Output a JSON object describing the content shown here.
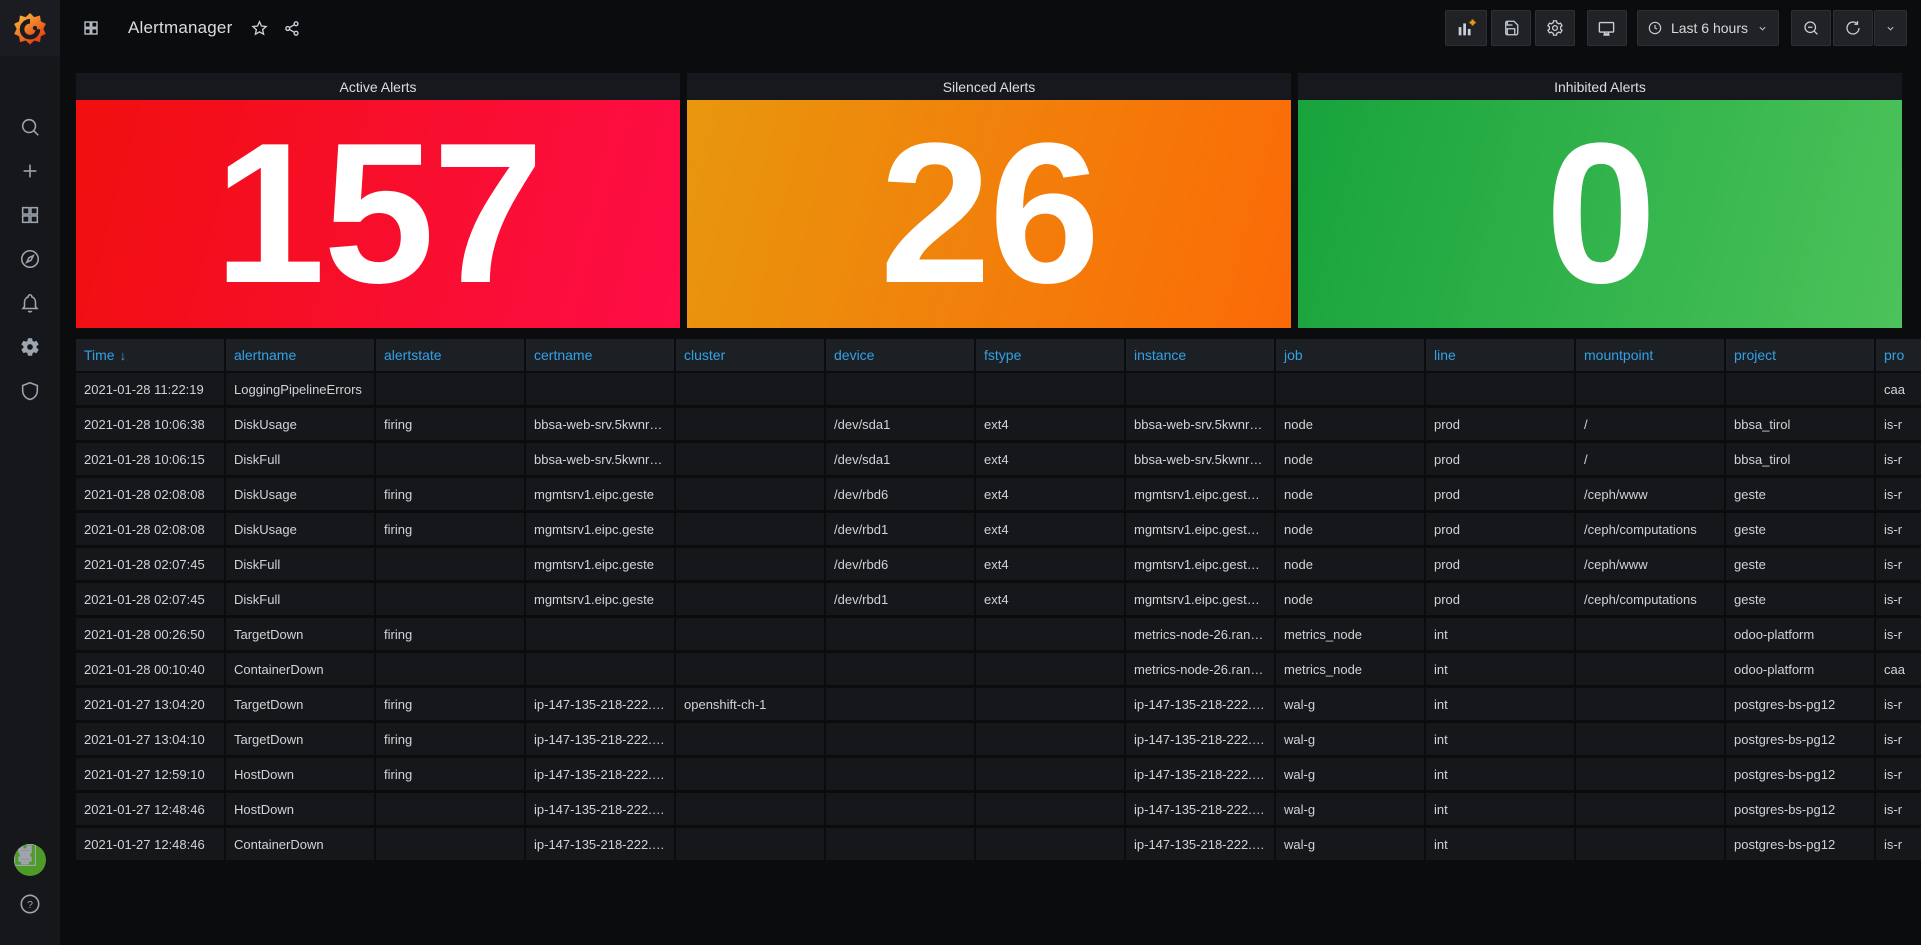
{
  "topbar": {
    "title": "Alertmanager",
    "toolbar": {
      "add_panel": "add panel",
      "save": "save dashboard",
      "settings": "dashboard settings",
      "tv_mode": "cycle view mode",
      "time_range_label": "Last 6 hours",
      "zoom_out": "zoom out time range",
      "refresh": "refresh dashboard"
    }
  },
  "sidebar": {
    "items": [
      "search",
      "create",
      "dashboards",
      "explore",
      "alerting",
      "configuration",
      "server-admin"
    ],
    "bottom": [
      "user-avatar",
      "help"
    ],
    "help_glyph": "?"
  },
  "stat_panels": [
    {
      "title": "Active Alerts",
      "value": "157",
      "gradient_from": "#f10f0f",
      "gradient_to": "#fe0d47",
      "text_color": "#ffffff"
    },
    {
      "title": "Silenced Alerts",
      "value": "26",
      "gradient_from": "#e8970e",
      "gradient_to": "#fb6a07",
      "text_color": "#ffffff"
    },
    {
      "title": "Inhibited Alerts",
      "value": "0",
      "gradient_from": "#18a33c",
      "gradient_to": "#4cc35a",
      "text_color": "#ffffff"
    }
  ],
  "table": {
    "header_color": "#33a2e5",
    "sort": {
      "column": "Time",
      "direction": "desc",
      "arrow": "↓"
    },
    "columns": [
      "Time",
      "alertname",
      "alertstate",
      "certname",
      "cluster",
      "device",
      "fstype",
      "instance",
      "job",
      "line",
      "mountpoint",
      "project",
      "pro"
    ],
    "rows": [
      [
        "2021-01-28 11:22:19",
        "LoggingPipelineErrors",
        "",
        "",
        "",
        "",
        "",
        "",
        "",
        "",
        "",
        "",
        "caa"
      ],
      [
        "2021-01-28 10:06:38",
        "DiskUsage",
        "firing",
        "bbsa-web-srv.5kwnr…",
        "",
        "/dev/sda1",
        "ext4",
        "bbsa-web-srv.5kwnr…",
        "node",
        "prod",
        "/",
        "bbsa_tirol",
        "is-r"
      ],
      [
        "2021-01-28 10:06:15",
        "DiskFull",
        "",
        "bbsa-web-srv.5kwnr…",
        "",
        "/dev/sda1",
        "ext4",
        "bbsa-web-srv.5kwnr…",
        "node",
        "prod",
        "/",
        "bbsa_tirol",
        "is-r"
      ],
      [
        "2021-01-28 02:08:08",
        "DiskUsage",
        "firing",
        "mgmtsrv1.eipc.geste",
        "",
        "/dev/rbd6",
        "ext4",
        "mgmtsrv1.eipc.gest…",
        "node",
        "prod",
        "/ceph/www",
        "geste",
        "is-r"
      ],
      [
        "2021-01-28 02:08:08",
        "DiskUsage",
        "firing",
        "mgmtsrv1.eipc.geste",
        "",
        "/dev/rbd1",
        "ext4",
        "mgmtsrv1.eipc.gest…",
        "node",
        "prod",
        "/ceph/computations",
        "geste",
        "is-r"
      ],
      [
        "2021-01-28 02:07:45",
        "DiskFull",
        "",
        "mgmtsrv1.eipc.geste",
        "",
        "/dev/rbd6",
        "ext4",
        "mgmtsrv1.eipc.gest…",
        "node",
        "prod",
        "/ceph/www",
        "geste",
        "is-r"
      ],
      [
        "2021-01-28 02:07:45",
        "DiskFull",
        "",
        "mgmtsrv1.eipc.geste",
        "",
        "/dev/rbd1",
        "ext4",
        "mgmtsrv1.eipc.gest…",
        "node",
        "prod",
        "/ceph/computations",
        "geste",
        "is-r"
      ],
      [
        "2021-01-28 00:26:50",
        "TargetDown",
        "firing",
        "",
        "",
        "",
        "",
        "metrics-node-26.ran…",
        "metrics_node",
        "int",
        "",
        "odoo-platform",
        "is-r"
      ],
      [
        "2021-01-28 00:10:40",
        "ContainerDown",
        "",
        "",
        "",
        "",
        "",
        "metrics-node-26.ran…",
        "metrics_node",
        "int",
        "",
        "odoo-platform",
        "caa"
      ],
      [
        "2021-01-27 13:04:20",
        "TargetDown",
        "firing",
        "ip-147-135-218-222.…",
        "openshift-ch-1",
        "",
        "",
        "ip-147-135-218-222.…",
        "wal-g",
        "int",
        "",
        "postgres-bs-pg12",
        "is-r"
      ],
      [
        "2021-01-27 13:04:10",
        "TargetDown",
        "firing",
        "ip-147-135-218-222.…",
        "",
        "",
        "",
        "ip-147-135-218-222.…",
        "wal-g",
        "int",
        "",
        "postgres-bs-pg12",
        "is-r"
      ],
      [
        "2021-01-27 12:59:10",
        "HostDown",
        "firing",
        "ip-147-135-218-222.…",
        "",
        "",
        "",
        "ip-147-135-218-222.…",
        "wal-g",
        "int",
        "",
        "postgres-bs-pg12",
        "is-r"
      ],
      [
        "2021-01-27 12:48:46",
        "HostDown",
        "",
        "ip-147-135-218-222.…",
        "",
        "",
        "",
        "ip-147-135-218-222.…",
        "wal-g",
        "int",
        "",
        "postgres-bs-pg12",
        "is-r"
      ],
      [
        "2021-01-27 12:48:46",
        "ContainerDown",
        "",
        "ip-147-135-218-222.…",
        "",
        "",
        "",
        "ip-147-135-218-222.…",
        "wal-g",
        "int",
        "",
        "postgres-bs-pg12",
        "is-r"
      ]
    ]
  }
}
